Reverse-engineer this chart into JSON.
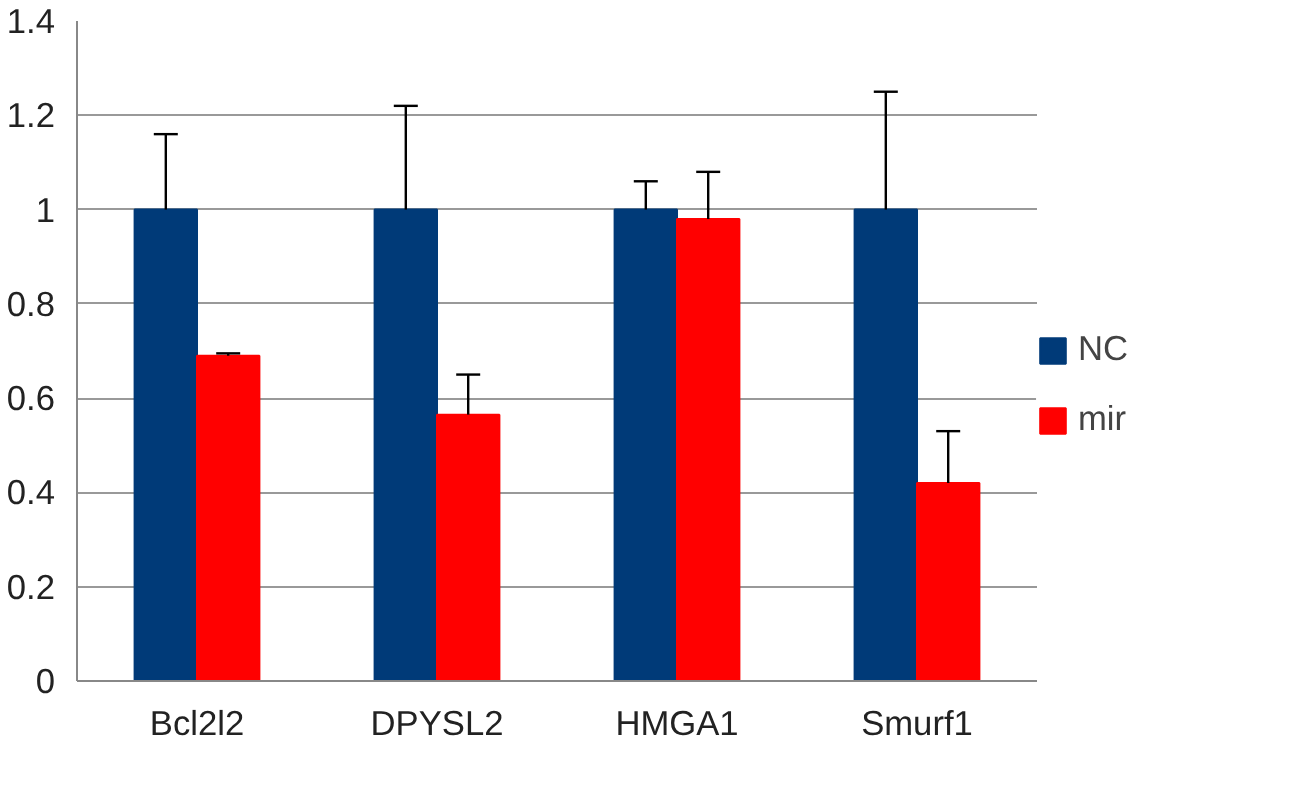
{
  "chart_data": {
    "type": "bar",
    "categories": [
      "Bcl2l2",
      "DPYSL2",
      "HMGA1",
      "Smurf1"
    ],
    "series": [
      {
        "name": "NC",
        "color": "#003a78",
        "values": [
          1,
          1,
          1,
          1
        ],
        "errors": [
          [
            1,
            1.16
          ],
          [
            1,
            1.22
          ],
          [
            1,
            1.06
          ],
          [
            1,
            1.25
          ]
        ]
      },
      {
        "name": "mir",
        "color": "#ff0000",
        "values": [
          0.69,
          0.565,
          0.98,
          0.42
        ],
        "errors": [
          [
            0.69,
            0.695
          ],
          [
            0.565,
            0.65
          ],
          [
            0.98,
            1.08
          ],
          [
            0.42,
            0.53
          ]
        ]
      }
    ],
    "ylim": [
      0,
      1.4
    ],
    "yticks": [
      0,
      0.2,
      0.4,
      0.6,
      0.8,
      1,
      1.2,
      1.4
    ],
    "grid": "y",
    "legend": "right"
  }
}
